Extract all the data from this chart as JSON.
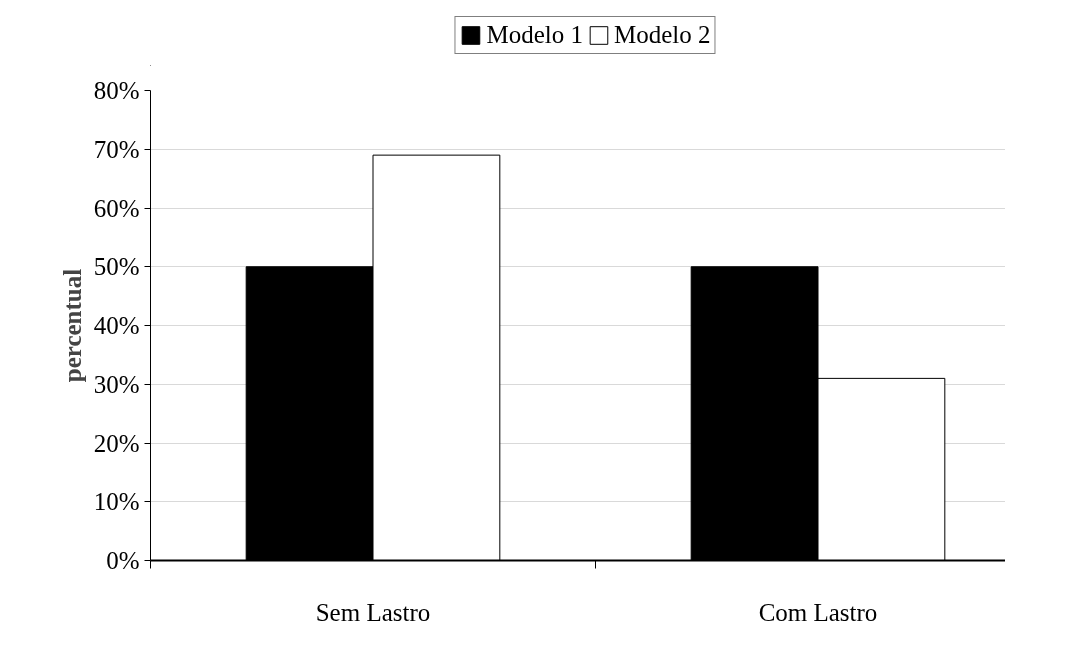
{
  "chart_data": {
    "type": "bar",
    "ylabel": "percentual",
    "categories": [
      "Sem Lastro",
      "Com Lastro"
    ],
    "series": [
      {
        "name": "Modelo 1",
        "color": "#000000",
        "values": [
          50,
          50
        ]
      },
      {
        "name": "Modelo 2",
        "color": "#ffffff",
        "values": [
          69,
          31
        ]
      }
    ],
    "ylim": [
      0,
      80
    ],
    "yticks": [
      {
        "value": 0,
        "label": "0%"
      },
      {
        "value": 10,
        "label": "10%"
      },
      {
        "value": 20,
        "label": "20%"
      },
      {
        "value": 30,
        "label": "30%"
      },
      {
        "value": 40,
        "label": "40%"
      },
      {
        "value": 50,
        "label": "50%"
      },
      {
        "value": 60,
        "label": "60%"
      },
      {
        "value": 70,
        "label": "70%"
      },
      {
        "value": 80,
        "label": "80%"
      }
    ],
    "grid": "y",
    "legend": "top"
  }
}
